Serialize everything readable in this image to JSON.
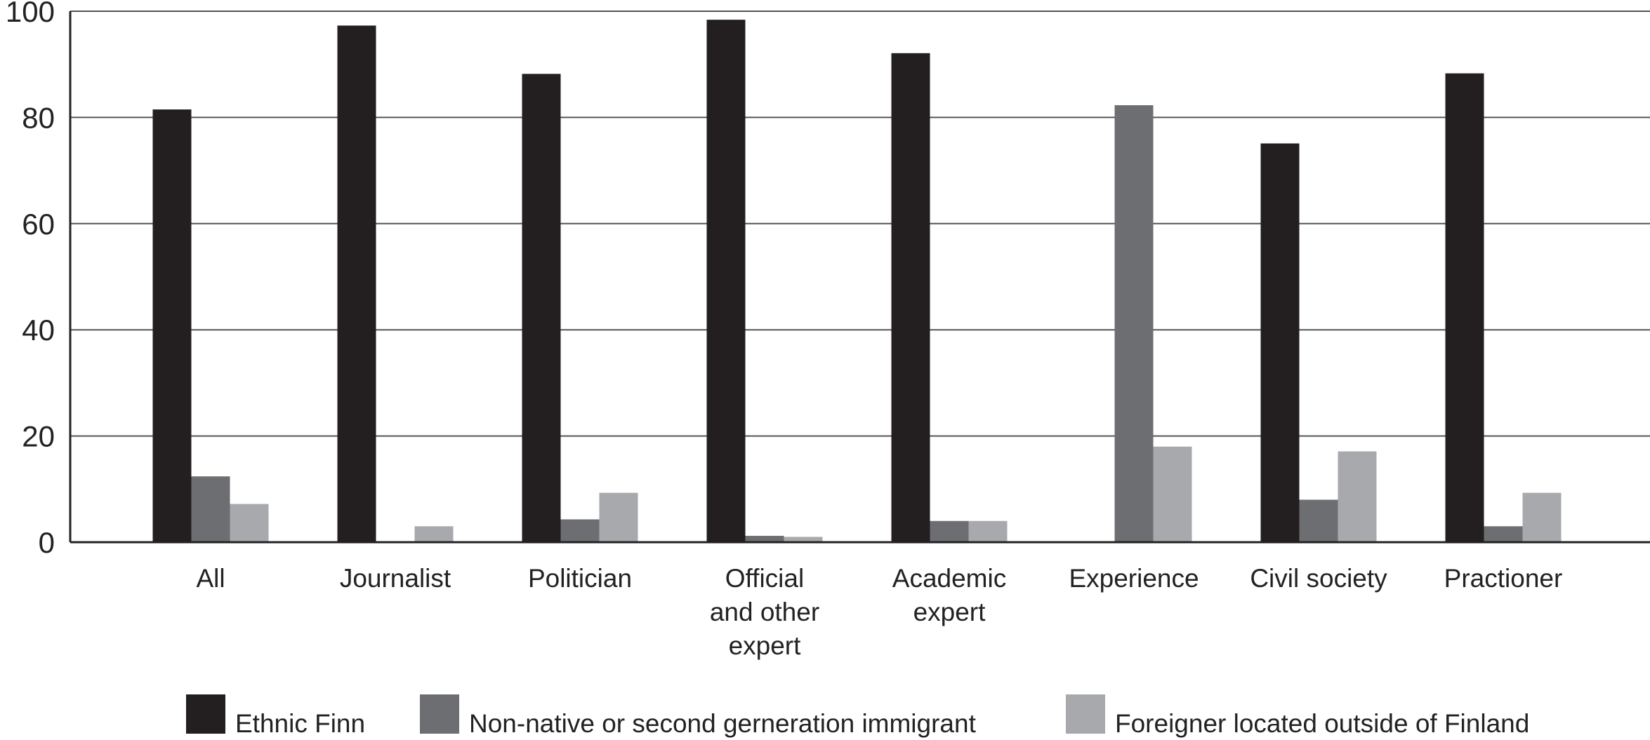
{
  "chart_data": {
    "type": "bar",
    "title": "",
    "xlabel": "",
    "ylabel": "",
    "ylim": [
      0,
      100
    ],
    "yticks": [
      0,
      20,
      40,
      60,
      80,
      100
    ],
    "grid": true,
    "legend_position": "bottom",
    "categories": [
      [
        "All"
      ],
      [
        "Journalist"
      ],
      [
        "Politician"
      ],
      [
        "Official",
        "and other",
        "expert"
      ],
      [
        "Academic",
        "expert"
      ],
      [
        "Experience"
      ],
      [
        "Civil society"
      ],
      [
        "Practioner"
      ]
    ],
    "series": [
      {
        "name": "Ethnic Finn",
        "color": "#231f20",
        "values": [
          81.5,
          97.3,
          88.2,
          98.4,
          92.1,
          0,
          75.1,
          88.3
        ]
      },
      {
        "name": "Non-native or second gerneration immigrant",
        "color": "#6d6e71",
        "values": [
          12.4,
          0,
          4.3,
          1.2,
          4.0,
          82.3,
          8.0,
          3.0
        ]
      },
      {
        "name": "Foreigner located outside of Finland",
        "color": "#a7a9ac",
        "values": [
          7.2,
          3.0,
          9.3,
          1.0,
          4.0,
          18.0,
          17.1,
          9.3
        ]
      }
    ]
  }
}
